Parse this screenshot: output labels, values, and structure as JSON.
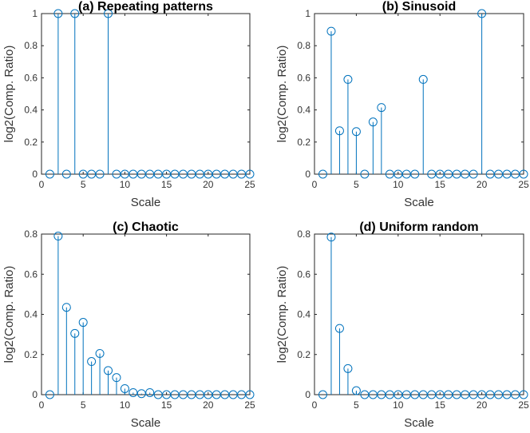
{
  "chart_data": [
    {
      "type": "stem",
      "title": "(a) Repeating patterns",
      "xlabel": "Scale",
      "ylabel": "log2(Comp. Ratio)",
      "xlim": [
        0,
        25
      ],
      "ylim": [
        0,
        1
      ],
      "xticks": [
        "0",
        "5",
        "10",
        "15",
        "20",
        "25"
      ],
      "yticks": [
        "0",
        "0.2",
        "0.4",
        "0.6",
        "0.8",
        "1"
      ],
      "x": [
        1,
        2,
        3,
        4,
        5,
        6,
        7,
        8,
        9,
        10,
        11,
        12,
        13,
        14,
        15,
        16,
        17,
        18,
        19,
        20,
        21,
        22,
        23,
        24,
        25
      ],
      "values": [
        0,
        1,
        0,
        1,
        0,
        0,
        0,
        1,
        0,
        0,
        0,
        0,
        0,
        0,
        0,
        0,
        0,
        0,
        0,
        0,
        0,
        0,
        0,
        0,
        0
      ]
    },
    {
      "type": "stem",
      "title": "(b) Sinusoid",
      "xlabel": "Scale",
      "ylabel": "log2(Comp. Ratio)",
      "xlim": [
        0,
        25
      ],
      "ylim": [
        0,
        1
      ],
      "xticks": [
        "0",
        "5",
        "10",
        "15",
        "20",
        "25"
      ],
      "yticks": [
        "0",
        "0.2",
        "0.4",
        "0.6",
        "0.8",
        "1"
      ],
      "x": [
        1,
        2,
        3,
        4,
        5,
        6,
        7,
        8,
        9,
        10,
        11,
        12,
        13,
        14,
        15,
        16,
        17,
        18,
        19,
        20,
        21,
        22,
        23,
        24,
        25
      ],
      "values": [
        0,
        0.89,
        0.27,
        0.59,
        0.265,
        0,
        0.325,
        0.415,
        0,
        0,
        0,
        0,
        0.59,
        0,
        0,
        0,
        0,
        0,
        0,
        1,
        0,
        0,
        0,
        0,
        0
      ]
    },
    {
      "type": "stem",
      "title": "(c) Chaotic",
      "xlabel": "Scale",
      "ylabel": "log2(Comp. Ratio)",
      "xlim": [
        0,
        25
      ],
      "ylim": [
        0,
        0.8
      ],
      "xticks": [
        "0",
        "5",
        "10",
        "15",
        "20",
        "25"
      ],
      "yticks": [
        "0",
        "0.2",
        "0.4",
        "0.6",
        "0.8"
      ],
      "x": [
        1,
        2,
        3,
        4,
        5,
        6,
        7,
        8,
        9,
        10,
        11,
        12,
        13,
        14,
        15,
        16,
        17,
        18,
        19,
        20,
        21,
        22,
        23,
        24,
        25
      ],
      "values": [
        0,
        0.79,
        0.435,
        0.305,
        0.36,
        0.165,
        0.205,
        0.12,
        0.085,
        0.03,
        0.01,
        0.005,
        0.01,
        0,
        0,
        0,
        0,
        0,
        0,
        0,
        0,
        0,
        0,
        0,
        0
      ]
    },
    {
      "type": "stem",
      "title": "(d) Uniform random",
      "xlabel": "Scale",
      "ylabel": "log2(Comp. Ratio)",
      "xlim": [
        0,
        25
      ],
      "ylim": [
        0,
        0.8
      ],
      "xticks": [
        "0",
        "5",
        "10",
        "15",
        "20",
        "25"
      ],
      "yticks": [
        "0",
        "0.2",
        "0.4",
        "0.6",
        "0.8"
      ],
      "x": [
        1,
        2,
        3,
        4,
        5,
        6,
        7,
        8,
        9,
        10,
        11,
        12,
        13,
        14,
        15,
        16,
        17,
        18,
        19,
        20,
        21,
        22,
        23,
        24,
        25
      ],
      "values": [
        0,
        0.785,
        0.33,
        0.13,
        0.02,
        0,
        0,
        0,
        0,
        0,
        0,
        0,
        0,
        0,
        0,
        0,
        0,
        0,
        0,
        0,
        0,
        0,
        0,
        0,
        0
      ]
    }
  ]
}
